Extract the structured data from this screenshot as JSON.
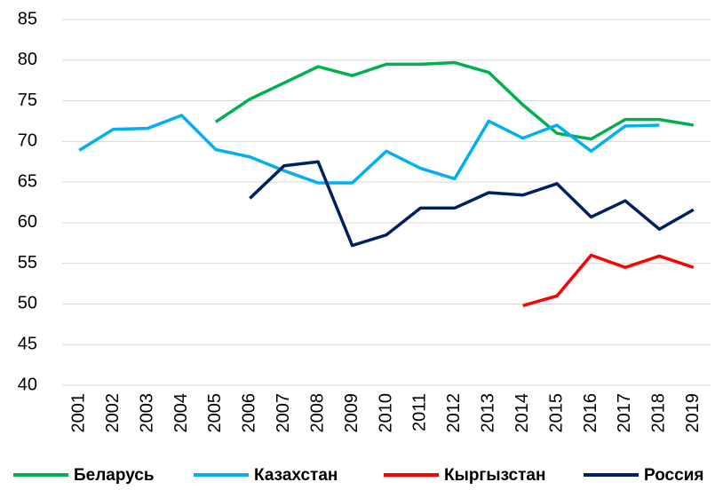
{
  "chart_data": {
    "type": "line",
    "categories": [
      "2001",
      "2002",
      "2003",
      "2004",
      "2005",
      "2006",
      "2007",
      "2008",
      "2009",
      "2010",
      "2011",
      "2012",
      "2013",
      "2014",
      "2015",
      "2016",
      "2017",
      "2018",
      "2019"
    ],
    "series": [
      {
        "name": "Беларусь",
        "color": "#00b050",
        "values": [
          null,
          null,
          null,
          null,
          72.4,
          75.2,
          77.2,
          79.2,
          78.1,
          79.5,
          79.5,
          79.7,
          78.5,
          74.5,
          71.0,
          70.3,
          72.7,
          72.7,
          72.0
        ]
      },
      {
        "name": "Казахстан",
        "color": "#00b0f0",
        "values": [
          68.9,
          71.5,
          71.6,
          73.2,
          69.0,
          68.1,
          66.4,
          64.9,
          64.9,
          68.8,
          66.7,
          65.4,
          72.5,
          70.4,
          72.0,
          68.8,
          71.9,
          72.0,
          null
        ]
      },
      {
        "name": "Кыргызстан",
        "color": "#ff0000",
        "values": [
          null,
          null,
          null,
          null,
          null,
          null,
          null,
          null,
          null,
          null,
          null,
          null,
          null,
          49.8,
          51.0,
          56.0,
          54.5,
          55.9,
          54.5
        ]
      },
      {
        "name": "Россия",
        "color": "#002060",
        "values": [
          null,
          null,
          null,
          null,
          null,
          63.0,
          67.0,
          67.5,
          57.2,
          58.5,
          61.8,
          61.8,
          63.7,
          63.4,
          64.8,
          60.7,
          62.7,
          59.2,
          61.6
        ]
      }
    ],
    "ylim": [
      40,
      85
    ],
    "yticks": [
      40,
      45,
      50,
      55,
      60,
      65,
      70,
      75,
      80,
      85
    ],
    "grid": true,
    "legend": "bottom"
  }
}
